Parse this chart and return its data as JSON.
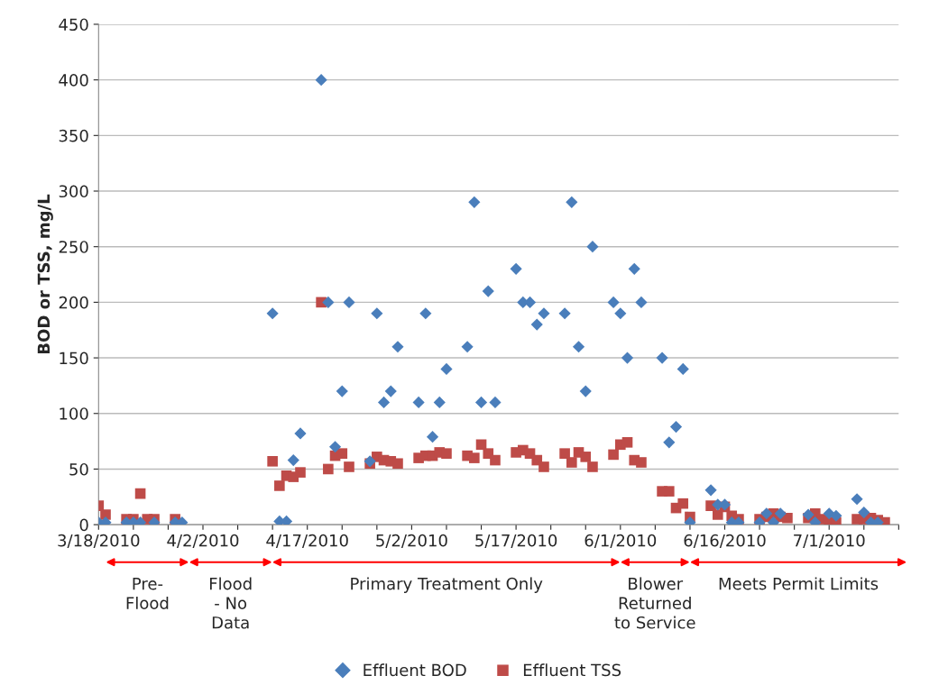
{
  "chart_data": {
    "type": "scatter",
    "ylabel": "BOD or TSS, mg/L",
    "series": [
      {
        "name": "Effluent BOD",
        "color": "#4a7ebb",
        "marker": "diamond",
        "x": [
          "2010-03-18",
          "2010-03-19",
          "2010-03-22",
          "2010-03-23",
          "2010-03-24",
          "2010-03-26",
          "2010-03-29",
          "2010-03-30",
          "2010-04-12",
          "2010-04-13",
          "2010-04-14",
          "2010-04-15",
          "2010-04-16",
          "2010-04-19",
          "2010-04-20",
          "2010-04-21",
          "2010-04-22",
          "2010-04-23",
          "2010-04-26",
          "2010-04-27",
          "2010-04-28",
          "2010-04-29",
          "2010-04-30",
          "2010-05-03",
          "2010-05-04",
          "2010-05-05",
          "2010-05-06",
          "2010-05-07",
          "2010-05-10",
          "2010-05-11",
          "2010-05-12",
          "2010-05-13",
          "2010-05-14",
          "2010-05-17",
          "2010-05-18",
          "2010-05-19",
          "2010-05-20",
          "2010-05-21",
          "2010-05-24",
          "2010-05-25",
          "2010-05-26",
          "2010-05-27",
          "2010-05-28",
          "2010-05-31",
          "2010-06-01",
          "2010-06-02",
          "2010-06-03",
          "2010-06-04",
          "2010-06-07",
          "2010-06-08",
          "2010-06-09",
          "2010-06-10",
          "2010-06-11",
          "2010-06-14",
          "2010-06-15",
          "2010-06-16",
          "2010-06-17",
          "2010-06-18",
          "2010-06-21",
          "2010-06-22",
          "2010-06-23",
          "2010-06-24",
          "2010-06-28",
          "2010-06-29",
          "2010-07-01",
          "2010-07-02",
          "2010-07-05",
          "2010-07-06",
          "2010-07-07",
          "2010-07-08"
        ],
        "values": [
          2,
          2,
          2,
          2,
          2,
          2,
          2,
          2,
          190,
          3,
          3,
          58,
          82,
          400,
          200,
          70,
          120,
          200,
          57,
          190,
          110,
          120,
          160,
          110,
          190,
          79,
          110,
          140,
          160,
          290,
          110,
          210,
          110,
          230,
          200,
          200,
          180,
          190,
          190,
          290,
          160,
          120,
          250,
          200,
          190,
          150,
          230,
          200,
          150,
          74,
          88,
          140,
          2,
          31,
          18,
          18,
          2,
          2,
          2,
          10,
          2,
          10,
          9,
          2,
          10,
          8,
          23,
          11,
          2,
          2
        ]
      },
      {
        "name": "Effluent TSS",
        "color": "#be4b48",
        "marker": "square",
        "x": [
          "2010-03-18",
          "2010-03-19",
          "2010-03-22",
          "2010-03-23",
          "2010-03-24",
          "2010-03-25",
          "2010-03-26",
          "2010-03-29",
          "2010-04-12",
          "2010-04-13",
          "2010-04-14",
          "2010-04-15",
          "2010-04-16",
          "2010-04-19",
          "2010-04-20",
          "2010-04-21",
          "2010-04-22",
          "2010-04-23",
          "2010-04-26",
          "2010-04-27",
          "2010-04-28",
          "2010-04-29",
          "2010-04-30",
          "2010-05-03",
          "2010-05-04",
          "2010-05-05",
          "2010-05-06",
          "2010-05-07",
          "2010-05-10",
          "2010-05-11",
          "2010-05-12",
          "2010-05-13",
          "2010-05-14",
          "2010-05-17",
          "2010-05-18",
          "2010-05-19",
          "2010-05-20",
          "2010-05-21",
          "2010-05-24",
          "2010-05-25",
          "2010-05-26",
          "2010-05-27",
          "2010-05-28",
          "2010-05-31",
          "2010-06-01",
          "2010-06-02",
          "2010-06-03",
          "2010-06-04",
          "2010-06-07",
          "2010-06-08",
          "2010-06-09",
          "2010-06-10",
          "2010-06-11",
          "2010-06-14",
          "2010-06-15",
          "2010-06-16",
          "2010-06-17",
          "2010-06-18",
          "2010-06-21",
          "2010-06-22",
          "2010-06-23",
          "2010-06-24",
          "2010-06-25",
          "2010-06-28",
          "2010-06-29",
          "2010-06-30",
          "2010-07-01",
          "2010-07-02",
          "2010-07-05",
          "2010-07-06",
          "2010-07-07",
          "2010-07-08",
          "2010-07-09"
        ],
        "values": [
          17,
          9,
          5,
          5,
          28,
          5,
          5,
          5,
          57,
          35,
          44,
          43,
          47,
          200,
          50,
          62,
          64,
          52,
          55,
          61,
          58,
          57,
          55,
          60,
          62,
          62,
          65,
          64,
          62,
          60,
          72,
          64,
          58,
          65,
          67,
          64,
          58,
          52,
          64,
          56,
          65,
          61,
          52,
          63,
          72,
          74,
          58,
          56,
          30,
          30,
          15,
          19,
          7,
          17,
          9,
          16,
          8,
          5,
          5,
          7,
          10,
          7,
          6,
          6,
          10,
          5,
          2,
          2,
          5,
          5,
          6,
          4,
          2
        ]
      }
    ],
    "xlim": [
      "2010-03-18",
      "2010-07-11"
    ],
    "xticks": [
      {
        "value": "2010-03-18",
        "label": "3/18/2010"
      },
      {
        "value": "2010-03-23",
        "label": null
      },
      {
        "value": "2010-03-28",
        "label": null
      },
      {
        "value": "2010-04-02",
        "label": "4/2/2010"
      },
      {
        "value": "2010-04-07",
        "label": null
      },
      {
        "value": "2010-04-12",
        "label": null
      },
      {
        "value": "2010-04-17",
        "label": "4/17/2010"
      },
      {
        "value": "2010-04-22",
        "label": null
      },
      {
        "value": "2010-04-27",
        "label": null
      },
      {
        "value": "2010-05-02",
        "label": "5/2/2010"
      },
      {
        "value": "2010-05-07",
        "label": null
      },
      {
        "value": "2010-05-12",
        "label": null
      },
      {
        "value": "2010-05-17",
        "label": "5/17/2010"
      },
      {
        "value": "2010-05-22",
        "label": null
      },
      {
        "value": "2010-05-27",
        "label": null
      },
      {
        "value": "2010-06-01",
        "label": "6/1/2010"
      },
      {
        "value": "2010-06-06",
        "label": null
      },
      {
        "value": "2010-06-11",
        "label": null
      },
      {
        "value": "2010-06-16",
        "label": "6/16/2010"
      },
      {
        "value": "2010-06-21",
        "label": null
      },
      {
        "value": "2010-06-26",
        "label": null
      },
      {
        "value": "2010-07-01",
        "label": "7/1/2010"
      },
      {
        "value": "2010-07-06",
        "label": null
      },
      {
        "value": "2010-07-11",
        "label": null
      }
    ],
    "ylim": [
      0,
      450
    ],
    "yticks": [
      0,
      50,
      100,
      150,
      200,
      250,
      300,
      350,
      400,
      450
    ],
    "grid": "y",
    "legend": "bottom",
    "annotations": [
      "Pre-\nFlood",
      "Flood\n- No\nData",
      "Primary Treatment Only",
      "Blower\nReturned\nto Service",
      "Meets Permit Limits"
    ]
  }
}
